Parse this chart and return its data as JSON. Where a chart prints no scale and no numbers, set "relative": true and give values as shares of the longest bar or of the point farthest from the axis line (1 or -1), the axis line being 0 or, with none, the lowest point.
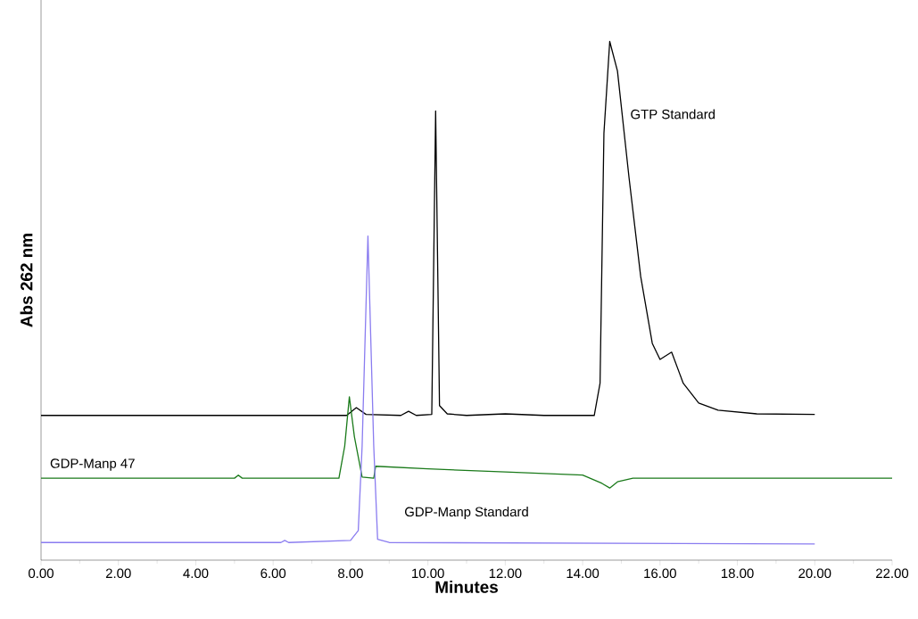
{
  "chart_data": {
    "type": "line",
    "relative": true,
    "xlabel": "Minutes",
    "ylabel": "Abs 262 nm",
    "xlim": [
      0,
      22
    ],
    "xticks": [
      {
        "value": 0,
        "label": "0.00"
      },
      {
        "value": 2,
        "label": "2.00"
      },
      {
        "value": 4,
        "label": "4.00"
      },
      {
        "value": 6,
        "label": "6.00"
      },
      {
        "value": 8,
        "label": "8.00"
      },
      {
        "value": 10,
        "label": "10.00"
      },
      {
        "value": 12,
        "label": "12.00"
      },
      {
        "value": 14,
        "label": "14.00"
      },
      {
        "value": 16,
        "label": "16.00"
      },
      {
        "value": 18,
        "label": "18.00"
      },
      {
        "value": 20,
        "label": "20.00"
      },
      {
        "value": 22,
        "label": "22.00"
      }
    ],
    "legend": false,
    "series": [
      {
        "name": "GTP Standard",
        "color": "#000000",
        "x": [
          0,
          3.7,
          7.9,
          8.15,
          8.4,
          9.3,
          9.5,
          9.7,
          10.1,
          10.2,
          10.3,
          10.5,
          11,
          12,
          13,
          14.3,
          14.45,
          14.55,
          14.7,
          14.9,
          15.2,
          15.5,
          15.8,
          16.0,
          16.3,
          16.6,
          17.0,
          17.5,
          18.5,
          20
        ],
        "values": [
          0.279,
          0.279,
          0.279,
          0.294,
          0.281,
          0.279,
          0.287,
          0.279,
          0.281,
          0.866,
          0.298,
          0.282,
          0.279,
          0.282,
          0.279,
          0.279,
          0.341,
          0.823,
          1,
          0.943,
          0.737,
          0.547,
          0.418,
          0.387,
          0.401,
          0.341,
          0.303,
          0.289,
          0.282,
          0.281
        ]
      },
      {
        "name": "GDP-Manp 47",
        "color": "#1a7a1a",
        "x": [
          0,
          5.0,
          5.1,
          5.2,
          7.7,
          7.85,
          7.97,
          8.1,
          8.3,
          8.6,
          8.65,
          10,
          12,
          14,
          14.5,
          14.7,
          14.9,
          15.3,
          22
        ],
        "values": [
          0.158,
          0.158,
          0.164,
          0.158,
          0.158,
          0.22,
          0.315,
          0.238,
          0.16,
          0.158,
          0.181,
          0.176,
          0.17,
          0.164,
          0.148,
          0.139,
          0.151,
          0.158,
          0.158
        ]
      },
      {
        "name": "GDP-Manp Standard",
        "color": "#8a7cf0",
        "x": [
          0,
          6.2,
          6.3,
          6.4,
          8.0,
          8.2,
          8.3,
          8.45,
          8.6,
          8.7,
          9,
          20
        ],
        "values": [
          0.034,
          0.034,
          0.038,
          0.034,
          0.038,
          0.057,
          0.22,
          0.625,
          0.22,
          0.04,
          0.034,
          0.031
        ]
      }
    ]
  }
}
